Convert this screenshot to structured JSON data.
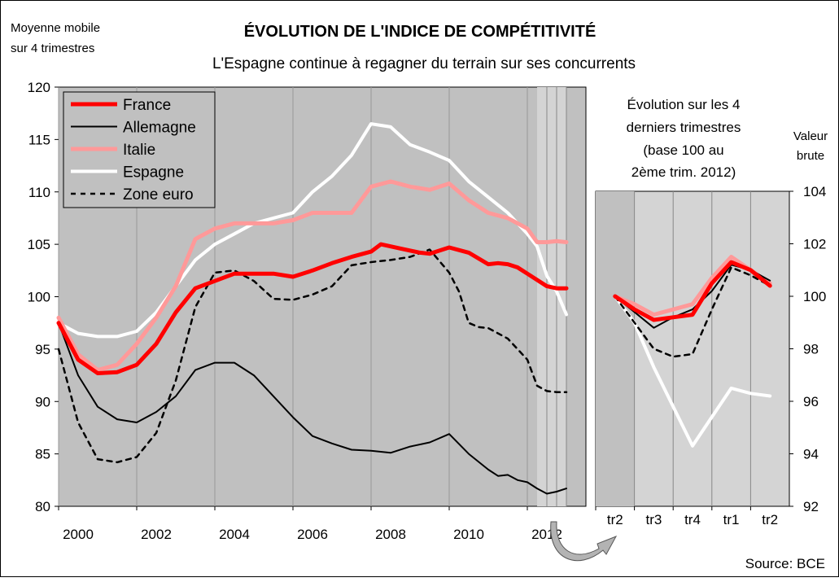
{
  "title": "ÉVOLUTION DE L'INDICE DE COMPÉTITIVITÉ",
  "subtitle": "L'Espagne continue à regagner du terrain sur ses concurrents",
  "source": "Source: BCE",
  "colors": {
    "plot_bg": "#c0c0c0",
    "shade_bg": "#d4d4d4",
    "france": "#ff0000",
    "allemagne": "#000000",
    "italie": "#ff9999",
    "espagne": "#ffffff",
    "zone_euro": "#000000"
  },
  "chart_data": [
    {
      "type": "line",
      "ylabel_lines": [
        "Moyenne mobile",
        "sur 4 trimestres"
      ],
      "ylim": [
        80,
        120
      ],
      "yticks": [
        80,
        85,
        90,
        95,
        100,
        105,
        110,
        115,
        120
      ],
      "xlim": [
        2000,
        2013.5
      ],
      "xticks": [
        "2000",
        "2002",
        "2004",
        "2006",
        "2008",
        "2010",
        "2012"
      ],
      "xtick_values": [
        2000,
        2002,
        2004,
        2006,
        2008,
        2010,
        2012
      ],
      "grid": true,
      "legend_position": "top-left",
      "shaded_period": [
        2012.25,
        2013
      ],
      "series": [
        {
          "name": "France",
          "x": [
            2000,
            2000.5,
            2001,
            2001.5,
            2002,
            2002.5,
            2003,
            2003.5,
            2004,
            2004.5,
            2005,
            2005.5,
            2006,
            2006.5,
            2007,
            2007.5,
            2008,
            2008.25,
            2008.75,
            2009.25,
            2009.5,
            2010,
            2010.5,
            2011,
            2011.25,
            2011.5,
            2011.75,
            2012,
            2012.5,
            2012.75,
            2013
          ],
          "values": [
            97.5,
            94,
            92.7,
            92.8,
            93.5,
            95.5,
            98.5,
            100.8,
            101.5,
            102.2,
            102.2,
            102.2,
            101.9,
            102.5,
            103.2,
            103.8,
            104.3,
            105,
            104.6,
            104.2,
            104.1,
            104.7,
            104.2,
            103.1,
            103.2,
            103.1,
            102.8,
            102.2,
            101,
            100.8,
            100.8
          ]
        },
        {
          "name": "Allemagne",
          "x": [
            2000,
            2000.5,
            2001,
            2001.5,
            2002,
            2002.5,
            2003,
            2003.5,
            2004,
            2004.5,
            2005,
            2005.5,
            2006,
            2006.5,
            2007,
            2007.5,
            2008,
            2008.5,
            2009,
            2009.5,
            2010,
            2010.5,
            2011,
            2011.25,
            2011.5,
            2011.75,
            2012,
            2012.25,
            2012.5,
            2012.75,
            2013
          ],
          "values": [
            97.5,
            92.5,
            89.5,
            88.3,
            88,
            89,
            90.5,
            93,
            93.7,
            93.7,
            92.5,
            90.5,
            88.5,
            86.7,
            86,
            85.4,
            85.3,
            85.1,
            85.7,
            86.1,
            86.9,
            85,
            83.5,
            82.9,
            83,
            82.5,
            82.3,
            81.7,
            81.2,
            81.4,
            81.7
          ]
        },
        {
          "name": "Italie",
          "x": [
            2000,
            2000.5,
            2001,
            2001.5,
            2002,
            2002.5,
            2003,
            2003.5,
            2004,
            2004.5,
            2005,
            2005.5,
            2006,
            2006.5,
            2007,
            2007.5,
            2008,
            2008.5,
            2009,
            2009.5,
            2010,
            2010.5,
            2011,
            2011.5,
            2012,
            2012.25,
            2012.5,
            2012.75,
            2013
          ],
          "values": [
            98,
            94.5,
            93,
            93.5,
            95.5,
            98,
            101,
            105.5,
            106.5,
            107,
            107,
            107,
            107.3,
            108,
            108,
            108,
            110.5,
            111,
            110.5,
            110.2,
            110.8,
            109.2,
            108,
            107.5,
            106.5,
            105.2,
            105.2,
            105.3,
            105.2
          ]
        },
        {
          "name": "Espagne",
          "x": [
            2000,
            2000.5,
            2001,
            2001.5,
            2002,
            2002.5,
            2003,
            2003.5,
            2004,
            2004.5,
            2005,
            2005.5,
            2006,
            2006.5,
            2007,
            2007.5,
            2008,
            2008.5,
            2009,
            2009.5,
            2010,
            2010.5,
            2011,
            2011.5,
            2012,
            2012.25,
            2012.5,
            2012.75,
            2013
          ],
          "values": [
            97.5,
            96.5,
            96.2,
            96.2,
            96.7,
            98.5,
            101,
            103.5,
            105,
            106,
            107,
            107.5,
            108,
            110,
            111.5,
            113.5,
            116.5,
            116.2,
            114.5,
            113.8,
            113,
            111,
            109.5,
            108,
            106,
            104.8,
            102,
            100.5,
            98.3
          ]
        },
        {
          "name": "Zone euro",
          "x": [
            2000,
            2000.5,
            2001,
            2001.5,
            2002,
            2002.5,
            2003,
            2003.5,
            2004,
            2004.5,
            2005,
            2005.5,
            2006,
            2006.5,
            2007,
            2007.5,
            2008,
            2008.5,
            2009,
            2009.5,
            2010,
            2010.25,
            2010.5,
            2010.75,
            2011,
            2011.5,
            2012,
            2012.25,
            2012.5,
            2012.75,
            2013
          ],
          "values": [
            95,
            88,
            84.5,
            84.2,
            84.7,
            87,
            92,
            99,
            102.3,
            102.5,
            101.5,
            99.8,
            99.7,
            100.2,
            101,
            103,
            103.3,
            103.5,
            103.8,
            104.5,
            102.3,
            100.5,
            97.5,
            97.1,
            97,
            96,
            94,
            91.5,
            91,
            90.9,
            90.9
          ]
        }
      ]
    },
    {
      "type": "line",
      "title_lines": [
        "Évolution sur les 4",
        "derniers trimestres",
        "(base 100 au",
        "2ème trim. 2012)"
      ],
      "ylabel_lines": [
        "Valeur",
        "brute"
      ],
      "ylim": [
        92,
        104
      ],
      "yticks": [
        92,
        94,
        96,
        98,
        100,
        102,
        104
      ],
      "categories": [
        "tr2",
        "tr3",
        "tr4",
        "tr1",
        "tr2"
      ],
      "legend_position": "none",
      "series": [
        {
          "name": "France",
          "x": [
            0,
            0.5,
            1,
            1.5,
            2,
            2.5,
            3,
            3.5,
            4
          ],
          "values": [
            100,
            99.5,
            99.1,
            99.2,
            99.3,
            100.5,
            101.3,
            101,
            100.4
          ]
        },
        {
          "name": "Allemagne",
          "x": [
            0,
            0.5,
            1,
            1.5,
            2,
            2.5,
            3,
            3.5,
            4
          ],
          "values": [
            100,
            99.4,
            98.8,
            99.2,
            99.5,
            100.2,
            101.2,
            101,
            100.6
          ]
        },
        {
          "name": "Italie",
          "x": [
            0,
            0.5,
            1,
            1.5,
            2,
            2.5,
            3,
            3.5,
            4
          ],
          "values": [
            100,
            99.7,
            99.3,
            99.5,
            99.7,
            100.7,
            101.5,
            101,
            100.5
          ]
        },
        {
          "name": "Espagne",
          "x": [
            0,
            0.5,
            1,
            1.5,
            2,
            2.5,
            3,
            3.5,
            4
          ],
          "values": [
            100,
            99,
            97.3,
            95.8,
            94.3,
            95.4,
            96.5,
            96.3,
            96.2
          ]
        },
        {
          "name": "Zone euro",
          "x": [
            0,
            0.5,
            1,
            1.5,
            2,
            2.5,
            3,
            3.5,
            4
          ],
          "values": [
            100,
            99,
            98,
            97.7,
            97.8,
            99.5,
            101.1,
            100.8,
            100.4
          ]
        }
      ]
    }
  ]
}
